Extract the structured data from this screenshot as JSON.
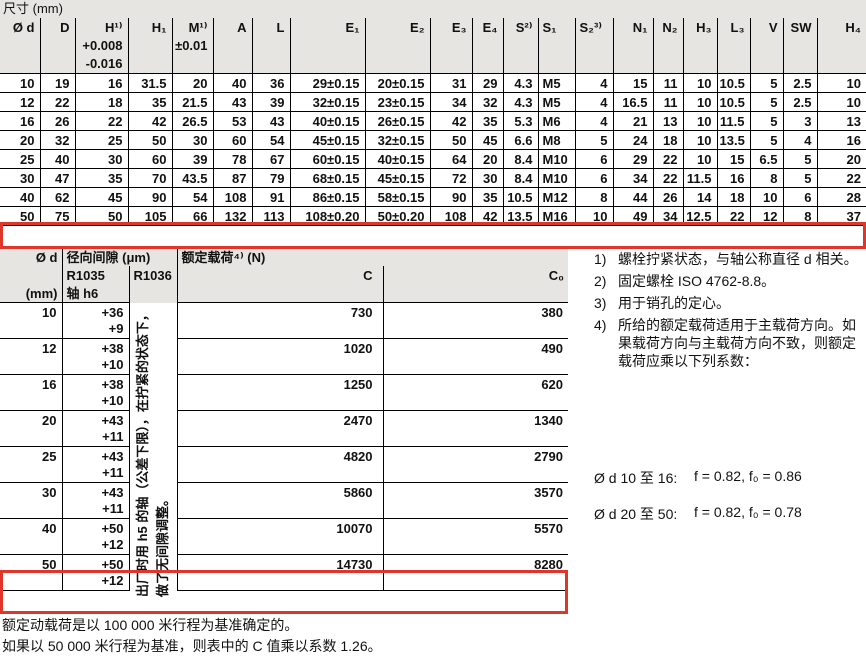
{
  "colors": {
    "header_bg": "#e6e5e2",
    "highlight_red": "#e0352b",
    "line": "#000000"
  },
  "table1": {
    "caption": "尺寸 (mm)",
    "columns": [
      {
        "label": "Ø d"
      },
      {
        "label": "D"
      },
      {
        "label": "H¹⁾",
        "sub": [
          "+0.008",
          "-0.016"
        ]
      },
      {
        "label": "H₁"
      },
      {
        "label": "M¹⁾",
        "sub": [
          "±0.01"
        ]
      },
      {
        "label": "A"
      },
      {
        "label": "L"
      },
      {
        "label": "E₁"
      },
      {
        "label": "E₂"
      },
      {
        "label": "E₃"
      },
      {
        "label": "E₄"
      },
      {
        "label": "S²⁾"
      },
      {
        "label": "S₁",
        "align": "left"
      },
      {
        "label": "S₂³⁾",
        "halign": "left"
      },
      {
        "label": "N₁"
      },
      {
        "label": "N₂"
      },
      {
        "label": "H₃"
      },
      {
        "label": "L₃"
      },
      {
        "label": "V"
      },
      {
        "label": "SW"
      },
      {
        "label": "H₄"
      }
    ],
    "rows": [
      [
        "10",
        "19",
        "16",
        "31.5",
        "20",
        "40",
        "36",
        "29±0.15",
        "20±0.15",
        "31",
        "29",
        "4.3",
        "M5",
        "4",
        "15",
        "11",
        "10",
        "10.5",
        "5",
        "2.5",
        "10"
      ],
      [
        "12",
        "22",
        "18",
        "35",
        "21.5",
        "43",
        "39",
        "32±0.15",
        "23±0.15",
        "34",
        "32",
        "4.3",
        "M5",
        "4",
        "16.5",
        "11",
        "10",
        "10.5",
        "5",
        "2.5",
        "10"
      ],
      [
        "16",
        "26",
        "22",
        "42",
        "26.5",
        "53",
        "43",
        "40±0.15",
        "26±0.15",
        "42",
        "35",
        "5.3",
        "M6",
        "4",
        "21",
        "13",
        "10",
        "11.5",
        "5",
        "3",
        "13"
      ],
      [
        "20",
        "32",
        "25",
        "50",
        "30",
        "60",
        "54",
        "45±0.15",
        "32±0.15",
        "50",
        "45",
        "6.6",
        "M8",
        "5",
        "24",
        "18",
        "10",
        "13.5",
        "5",
        "4",
        "16"
      ],
      [
        "25",
        "40",
        "30",
        "60",
        "39",
        "78",
        "67",
        "60±0.15",
        "40±0.15",
        "64",
        "20",
        "8.4",
        "M10",
        "6",
        "29",
        "22",
        "10",
        "15",
        "6.5",
        "5",
        "20"
      ],
      [
        "30",
        "47",
        "35",
        "70",
        "43.5",
        "87",
        "79",
        "68±0.15",
        "45±0.15",
        "72",
        "30",
        "8.4",
        "M10",
        "6",
        "34",
        "22",
        "11.5",
        "16",
        "8",
        "5",
        "22"
      ],
      [
        "40",
        "62",
        "45",
        "90",
        "54",
        "108",
        "91",
        "86±0.15",
        "58±0.15",
        "90",
        "35",
        "10.5",
        "M12",
        "8",
        "44",
        "26",
        "14",
        "18",
        "10",
        "6",
        "28"
      ],
      [
        "50",
        "75",
        "50",
        "105",
        "66",
        "132",
        "113",
        "108±0.20",
        "50±0.20",
        "108",
        "42",
        "13.5",
        "M16",
        "10",
        "49",
        "34",
        "12.5",
        "22",
        "12",
        "8",
        "37"
      ]
    ],
    "highlight_row_index": 7
  },
  "table2": {
    "header": {
      "d_top": "Ø d",
      "d_bottom": "(mm)",
      "group_clearance": "径向间隙 (μm)",
      "r1035": "R1035",
      "r1035_sub": "轴 h6",
      "r1036": "R1036",
      "group_load": "额定载荷⁴⁾ (N)",
      "c": "C",
      "c0": "C₀"
    },
    "r1036_note_lines": [
      "出厂时用 h5 的轴（公差下限），在拧紧的状态下，",
      "做了无间隙调整。"
    ],
    "rows": [
      {
        "d": "10",
        "r1035": [
          "+36",
          "+9"
        ],
        "c": "730",
        "c0": "380"
      },
      {
        "d": "12",
        "r1035": [
          "+38",
          "+10"
        ],
        "c": "1020",
        "c0": "490"
      },
      {
        "d": "16",
        "r1035": [
          "+38",
          "+10"
        ],
        "c": "1250",
        "c0": "620"
      },
      {
        "d": "20",
        "r1035": [
          "+43",
          "+11"
        ],
        "c": "2470",
        "c0": "1340"
      },
      {
        "d": "25",
        "r1035": [
          "+43",
          "+11"
        ],
        "c": "4820",
        "c0": "2790"
      },
      {
        "d": "30",
        "r1035": [
          "+43",
          "+11"
        ],
        "c": "5860",
        "c0": "3570"
      },
      {
        "d": "40",
        "r1035": [
          "+50",
          "+12"
        ],
        "c": "10070",
        "c0": "5570"
      },
      {
        "d": "50",
        "r1035": [
          "+50",
          "+12"
        ],
        "c": "14730",
        "c0": "8280"
      }
    ],
    "highlight_row_index": 7
  },
  "notes": [
    {
      "num": "1)",
      "text": "螺栓拧紧状态，与轴公称直径 d 相关。"
    },
    {
      "num": "2)",
      "text": "固定螺栓 ISO 4762-8.8。"
    },
    {
      "num": "3)",
      "text": "用于销孔的定心。"
    },
    {
      "num": "4)",
      "text": "所给的额定载荷适用于主载荷方向。如果载荷方向与主载荷方向不致，则额定载荷应乘以下列系数："
    }
  ],
  "factors": [
    {
      "range": "Ø d 10 至 16:",
      "formula": "f = 0.82, f₀ = 0.86"
    },
    {
      "range": "Ø d 20 至 50:",
      "formula": "f = 0.82, f₀ = 0.78"
    }
  ],
  "footer": [
    "额定动载荷是以 100 000 米行程为基准确定的。",
    "如果以 50 000 米行程为基准，则表中的 C 值乘以系数 1.26。"
  ]
}
